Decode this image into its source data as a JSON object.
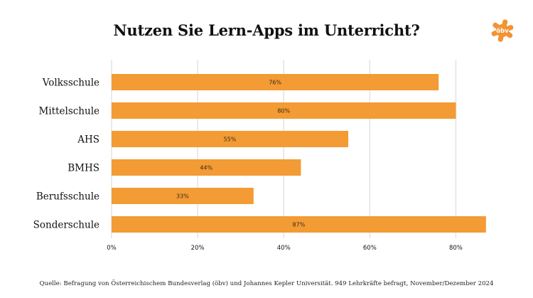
{
  "title": "Nutzen Sie Lern-Apps im Unterricht?",
  "logo": {
    "text": "öbv",
    "color": "#f39332",
    "icon": "star-logo-icon"
  },
  "source": "Quelle: Befragung von Österreichischem Bundesverlag (öbv) und Johannes Kepler Universität. 949 Lehrkräfte befragt, November/Dezember 2024",
  "colors": {
    "bar": "#f39b34",
    "grid": "#e3e3e3",
    "text": "#111111"
  },
  "chart_data": {
    "type": "bar",
    "orientation": "horizontal",
    "title": "Nutzen Sie Lern-Apps im Unterricht?",
    "categories": [
      "Volksschule",
      "Mittelschule",
      "AHS",
      "BMHS",
      "Berufsschule",
      "Sonderschule"
    ],
    "values": [
      76,
      80,
      55,
      44,
      33,
      87
    ],
    "data_labels": [
      "76%",
      "80%",
      "55%",
      "44%",
      "33%",
      "87%"
    ],
    "xlim": [
      0,
      90
    ],
    "xticks": [
      0,
      20,
      40,
      60,
      80
    ],
    "xtick_labels": [
      "0%",
      "20%",
      "40%",
      "60%",
      "80%"
    ],
    "grid": true,
    "xlabel": "",
    "ylabel": ""
  }
}
